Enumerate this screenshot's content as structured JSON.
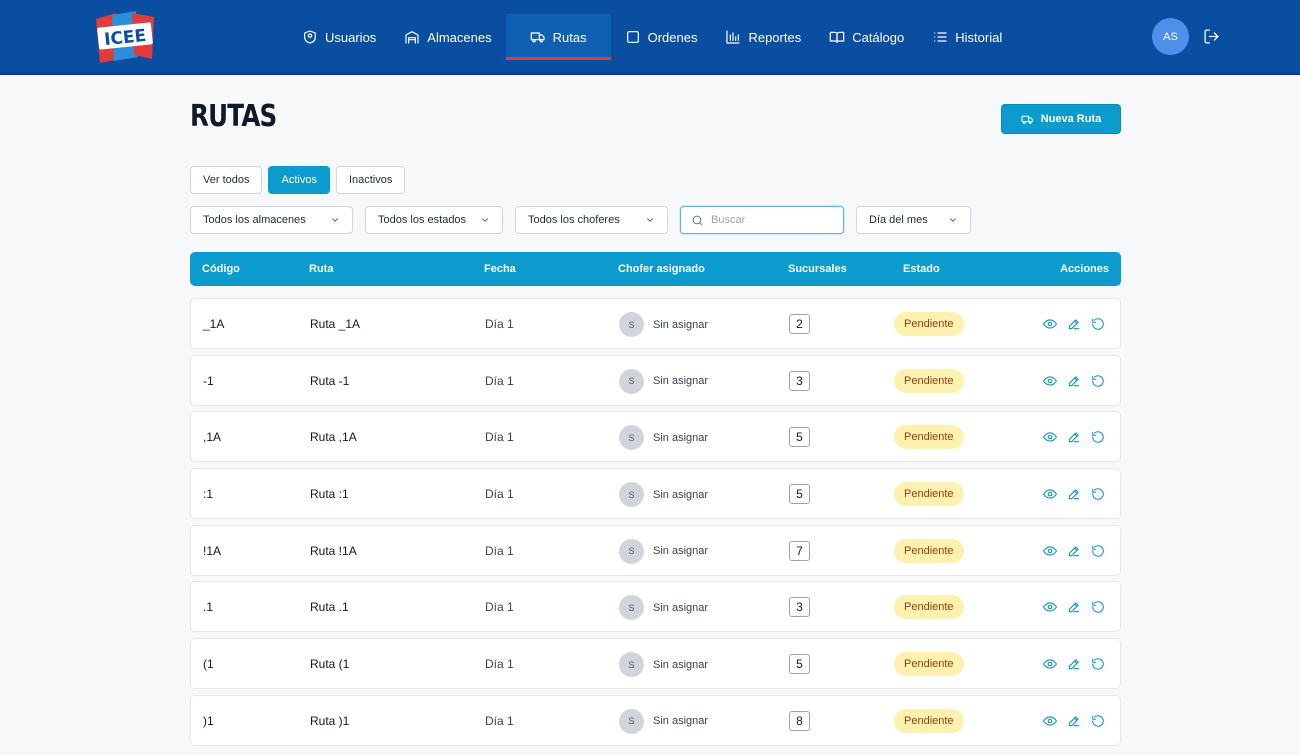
{
  "header": {
    "logo_text": "ICEE",
    "nav": [
      {
        "label": "Usuarios",
        "icon": "shield-icon"
      },
      {
        "label": "Almacenes",
        "icon": "warehouse-icon"
      },
      {
        "label": "Rutas",
        "icon": "truck-icon"
      },
      {
        "label": "Ordenes",
        "icon": "square-icon"
      },
      {
        "label": "Reportes",
        "icon": "bar-chart-icon"
      },
      {
        "label": "Catálogo",
        "icon": "book-icon"
      },
      {
        "label": "Historial",
        "icon": "list-icon"
      }
    ],
    "active_nav": "Rutas",
    "avatar_initials": "AS",
    "colors": {
      "bar": "#0a4ea1",
      "active_underline": "#e23b3b"
    }
  },
  "page": {
    "title": "RUTAS",
    "new_button": "Nueva Ruta"
  },
  "tabs": [
    "Ver todos",
    "Activos",
    "Inactivos"
  ],
  "active_tab": "Activos",
  "filters": {
    "almacenes": "Todos los almacenes",
    "estados": "Todos los estados",
    "choferes": "Todos los choferes",
    "search_placeholder": "Buscar",
    "dia": "Día del mes"
  },
  "table": {
    "columns": [
      "Código",
      "Ruta",
      "Fecha",
      "Chofer asignado",
      "Sucursales",
      "Estado",
      "Acciones"
    ],
    "rows": [
      {
        "code": "_1A",
        "ruta": "Ruta _1A",
        "fecha": "Día 1",
        "chofer_initial": "S",
        "chofer": "Sin asignar",
        "sucursales": "2",
        "estado": "Pendiente"
      },
      {
        "code": "-1",
        "ruta": "Ruta -1",
        "fecha": "Día 1",
        "chofer_initial": "S",
        "chofer": "Sin asignar",
        "sucursales": "3",
        "estado": "Pendiente"
      },
      {
        "code": ",1A",
        "ruta": "Ruta ,1A",
        "fecha": "Día 1",
        "chofer_initial": "S",
        "chofer": "Sin asignar",
        "sucursales": "5",
        "estado": "Pendiente"
      },
      {
        "code": ":1",
        "ruta": "Ruta :1",
        "fecha": "Día 1",
        "chofer_initial": "S",
        "chofer": "Sin asignar",
        "sucursales": "5",
        "estado": "Pendiente"
      },
      {
        "code": "!1A",
        "ruta": "Ruta !1A",
        "fecha": "Día 1",
        "chofer_initial": "S",
        "chofer": "Sin asignar",
        "sucursales": "7",
        "estado": "Pendiente"
      },
      {
        "code": ".1",
        "ruta": "Ruta .1",
        "fecha": "Día 1",
        "chofer_initial": "S",
        "chofer": "Sin asignar",
        "sucursales": "3",
        "estado": "Pendiente"
      },
      {
        "code": "(1",
        "ruta": "Ruta (1",
        "fecha": "Día 1",
        "chofer_initial": "S",
        "chofer": "Sin asignar",
        "sucursales": "5",
        "estado": "Pendiente"
      },
      {
        "code": ")1",
        "ruta": "Ruta )1",
        "fecha": "Día 1",
        "chofer_initial": "S",
        "chofer": "Sin asignar",
        "sucursales": "8",
        "estado": "Pendiente"
      }
    ],
    "row_actions": [
      "eye-icon",
      "pencil-icon",
      "refresh-icon"
    ],
    "colors": {
      "header": "#0b9bcd",
      "badge_bg": "#fdf1b0",
      "badge_text": "#92400e"
    }
  }
}
